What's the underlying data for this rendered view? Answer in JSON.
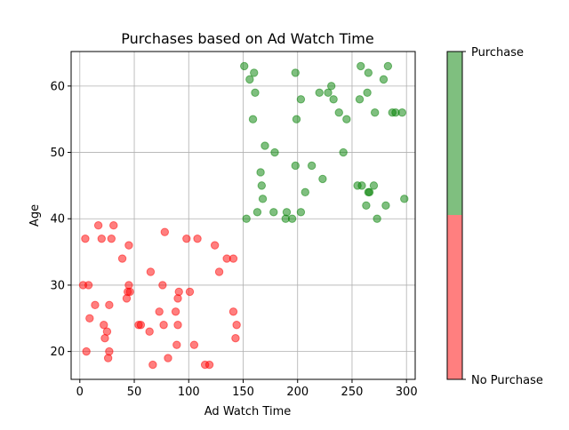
{
  "chart_data": {
    "type": "scatter",
    "title": "Purchases based on Ad Watch Time",
    "xlabel": "Ad Watch Time",
    "ylabel": "Age",
    "xlim": [
      -8,
      308
    ],
    "ylim": [
      15.8,
      65.2
    ],
    "xticks": [
      0,
      50,
      100,
      150,
      200,
      250,
      300
    ],
    "yticks": [
      20,
      30,
      40,
      50,
      60
    ],
    "grid": true,
    "point_opacity": 0.5,
    "colorbar": {
      "labels": [
        "No Purchase",
        "Purchase"
      ],
      "colors": [
        "#ff0000",
        "#008000"
      ]
    },
    "series": [
      {
        "name": "No Purchase",
        "color": "#ff0000",
        "points": [
          {
            "x": 3,
            "y": 30
          },
          {
            "x": 5,
            "y": 37
          },
          {
            "x": 6,
            "y": 20
          },
          {
            "x": 8,
            "y": 30
          },
          {
            "x": 9,
            "y": 25
          },
          {
            "x": 14,
            "y": 27
          },
          {
            "x": 17,
            "y": 39
          },
          {
            "x": 20,
            "y": 37
          },
          {
            "x": 22,
            "y": 24
          },
          {
            "x": 23,
            "y": 22
          },
          {
            "x": 25,
            "y": 23
          },
          {
            "x": 26,
            "y": 19
          },
          {
            "x": 27,
            "y": 20
          },
          {
            "x": 27,
            "y": 27
          },
          {
            "x": 29,
            "y": 37
          },
          {
            "x": 31,
            "y": 39
          },
          {
            "x": 39,
            "y": 34
          },
          {
            "x": 43,
            "y": 28
          },
          {
            "x": 44,
            "y": 29
          },
          {
            "x": 45,
            "y": 36
          },
          {
            "x": 45,
            "y": 30
          },
          {
            "x": 46,
            "y": 29
          },
          {
            "x": 54,
            "y": 24
          },
          {
            "x": 56,
            "y": 24
          },
          {
            "x": 64,
            "y": 23
          },
          {
            "x": 65,
            "y": 32
          },
          {
            "x": 67,
            "y": 18
          },
          {
            "x": 73,
            "y": 26
          },
          {
            "x": 76,
            "y": 30
          },
          {
            "x": 77,
            "y": 24
          },
          {
            "x": 78,
            "y": 38
          },
          {
            "x": 81,
            "y": 19
          },
          {
            "x": 88,
            "y": 26
          },
          {
            "x": 89,
            "y": 21
          },
          {
            "x": 90,
            "y": 28
          },
          {
            "x": 90,
            "y": 24
          },
          {
            "x": 91,
            "y": 29
          },
          {
            "x": 98,
            "y": 37
          },
          {
            "x": 101,
            "y": 29
          },
          {
            "x": 105,
            "y": 21
          },
          {
            "x": 108,
            "y": 37
          },
          {
            "x": 115,
            "y": 18
          },
          {
            "x": 119,
            "y": 18
          },
          {
            "x": 124,
            "y": 36
          },
          {
            "x": 128,
            "y": 32
          },
          {
            "x": 135,
            "y": 34
          },
          {
            "x": 141,
            "y": 34
          },
          {
            "x": 141,
            "y": 26
          },
          {
            "x": 143,
            "y": 22
          },
          {
            "x": 144,
            "y": 24
          }
        ]
      },
      {
        "name": "Purchase",
        "color": "#008000",
        "points": [
          {
            "x": 151,
            "y": 63
          },
          {
            "x": 153,
            "y": 40
          },
          {
            "x": 156,
            "y": 61
          },
          {
            "x": 159,
            "y": 55
          },
          {
            "x": 160,
            "y": 62
          },
          {
            "x": 161,
            "y": 59
          },
          {
            "x": 163,
            "y": 41
          },
          {
            "x": 166,
            "y": 47
          },
          {
            "x": 167,
            "y": 45
          },
          {
            "x": 168,
            "y": 43
          },
          {
            "x": 170,
            "y": 51
          },
          {
            "x": 178,
            "y": 41
          },
          {
            "x": 179,
            "y": 50
          },
          {
            "x": 189,
            "y": 40
          },
          {
            "x": 190,
            "y": 41
          },
          {
            "x": 195,
            "y": 40
          },
          {
            "x": 198,
            "y": 62
          },
          {
            "x": 198,
            "y": 48
          },
          {
            "x": 199,
            "y": 55
          },
          {
            "x": 203,
            "y": 58
          },
          {
            "x": 203,
            "y": 41
          },
          {
            "x": 207,
            "y": 44
          },
          {
            "x": 213,
            "y": 48
          },
          {
            "x": 220,
            "y": 59
          },
          {
            "x": 223,
            "y": 46
          },
          {
            "x": 228,
            "y": 59
          },
          {
            "x": 231,
            "y": 60
          },
          {
            "x": 233,
            "y": 58
          },
          {
            "x": 238,
            "y": 56
          },
          {
            "x": 242,
            "y": 50
          },
          {
            "x": 245,
            "y": 55
          },
          {
            "x": 255,
            "y": 45
          },
          {
            "x": 257,
            "y": 58
          },
          {
            "x": 258,
            "y": 63
          },
          {
            "x": 259,
            "y": 45
          },
          {
            "x": 263,
            "y": 42
          },
          {
            "x": 264,
            "y": 59
          },
          {
            "x": 265,
            "y": 62
          },
          {
            "x": 265,
            "y": 44
          },
          {
            "x": 266,
            "y": 44
          },
          {
            "x": 270,
            "y": 45
          },
          {
            "x": 271,
            "y": 56
          },
          {
            "x": 273,
            "y": 40
          },
          {
            "x": 279,
            "y": 61
          },
          {
            "x": 281,
            "y": 42
          },
          {
            "x": 283,
            "y": 63
          },
          {
            "x": 287,
            "y": 56
          },
          {
            "x": 290,
            "y": 56
          },
          {
            "x": 296,
            "y": 56
          },
          {
            "x": 298,
            "y": 43
          }
        ]
      }
    ]
  }
}
